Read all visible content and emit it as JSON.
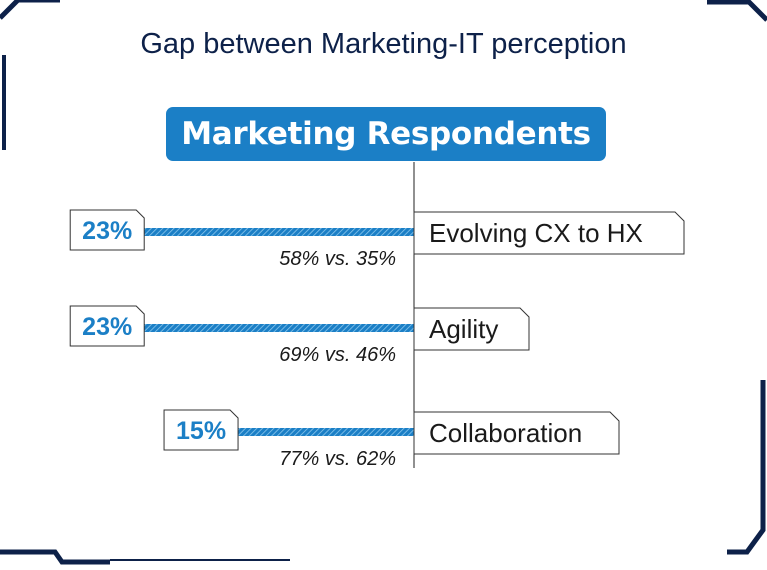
{
  "title": "Gap between Marketing-IT perception",
  "banner": "Marketing Respondents",
  "colors": {
    "accent": "#1b7fc6",
    "title": "#0d2149",
    "frame": "#0d2149"
  },
  "chart_data": {
    "type": "bar",
    "title": "Gap between Marketing-IT perception",
    "subtitle": "Marketing Respondents",
    "categories": [
      "Evolving CX to HX",
      "Agility",
      "Collaboration"
    ],
    "values": [
      23,
      23,
      15
    ],
    "value_labels": [
      "23%",
      "23%",
      "15%"
    ],
    "comparisons": [
      "58% vs. 35%",
      "69% vs. 46%",
      "77% vs. 62%"
    ],
    "unit": "%",
    "orientation": "horizontal",
    "direction": "leftward",
    "grid": false
  }
}
